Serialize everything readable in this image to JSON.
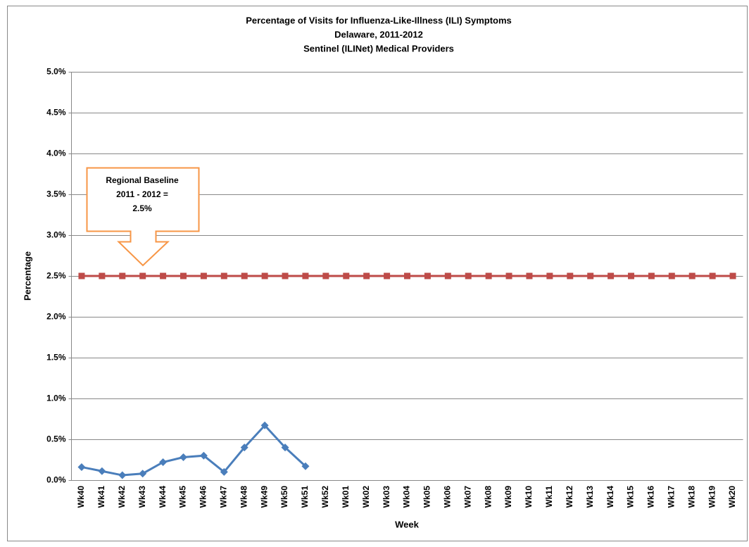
{
  "chart_data": {
    "type": "line",
    "title": [
      "Percentage of Visits for Influenza-Like-Illness (ILI) Symptoms",
      "Delaware, 2011-2012",
      "Sentinel (ILINet) Medical Providers"
    ],
    "x_label": "Week",
    "y_label": "Percentage",
    "categories": [
      "Wk40",
      "Wk41",
      "Wk42",
      "Wk43",
      "Wk44",
      "Wk45",
      "Wk46",
      "Wk47",
      "Wk48",
      "Wk49",
      "Wk50",
      "Wk51",
      "Wk52",
      "Wk01",
      "Wk02",
      "Wk03",
      "Wk04",
      "Wk05",
      "Wk06",
      "Wk07",
      "Wk08",
      "Wk09",
      "Wk10",
      "Wk11",
      "Wk12",
      "Wk13",
      "Wk14",
      "Wk15",
      "Wk16",
      "Wk17",
      "Wk18",
      "Wk19",
      "Wk20"
    ],
    "series": [
      {
        "color": "#4a7ebb",
        "marker": "diamond",
        "values": [
          0.16,
          0.11,
          0.06,
          0.08,
          0.22,
          0.28,
          0.3,
          0.1,
          0.4,
          0.67,
          0.4,
          0.17,
          null,
          null,
          null,
          null,
          null,
          null,
          null,
          null,
          null,
          null,
          null,
          null,
          null,
          null,
          null,
          null,
          null,
          null,
          null,
          null,
          null
        ]
      },
      {
        "color": "#be4b48",
        "marker": "square",
        "values": [
          2.5,
          2.5,
          2.5,
          2.5,
          2.5,
          2.5,
          2.5,
          2.5,
          2.5,
          2.5,
          2.5,
          2.5,
          2.5,
          2.5,
          2.5,
          2.5,
          2.5,
          2.5,
          2.5,
          2.5,
          2.5,
          2.5,
          2.5,
          2.5,
          2.5,
          2.5,
          2.5,
          2.5,
          2.5,
          2.5,
          2.5,
          2.5,
          2.5
        ]
      }
    ],
    "ylim": [
      0,
      5
    ],
    "yticks": [
      {
        "value": 0,
        "label": "0.0%"
      },
      {
        "value": 0.5,
        "label": "0.5%"
      },
      {
        "value": 1,
        "label": "1.0%"
      },
      {
        "value": 1.5,
        "label": "1.5%"
      },
      {
        "value": 2,
        "label": "2.0%"
      },
      {
        "value": 2.5,
        "label": "2.5%"
      },
      {
        "value": 3,
        "label": "3.0%"
      },
      {
        "value": 3.5,
        "label": "3.5%"
      },
      {
        "value": 4,
        "label": "4.0%"
      },
      {
        "value": 4.5,
        "label": "4.5%"
      },
      {
        "value": 5,
        "label": "5.0%"
      }
    ],
    "grid": true,
    "annotation": [
      "Regional Baseline",
      "2011 - 2012 =",
      "2.5%"
    ]
  }
}
